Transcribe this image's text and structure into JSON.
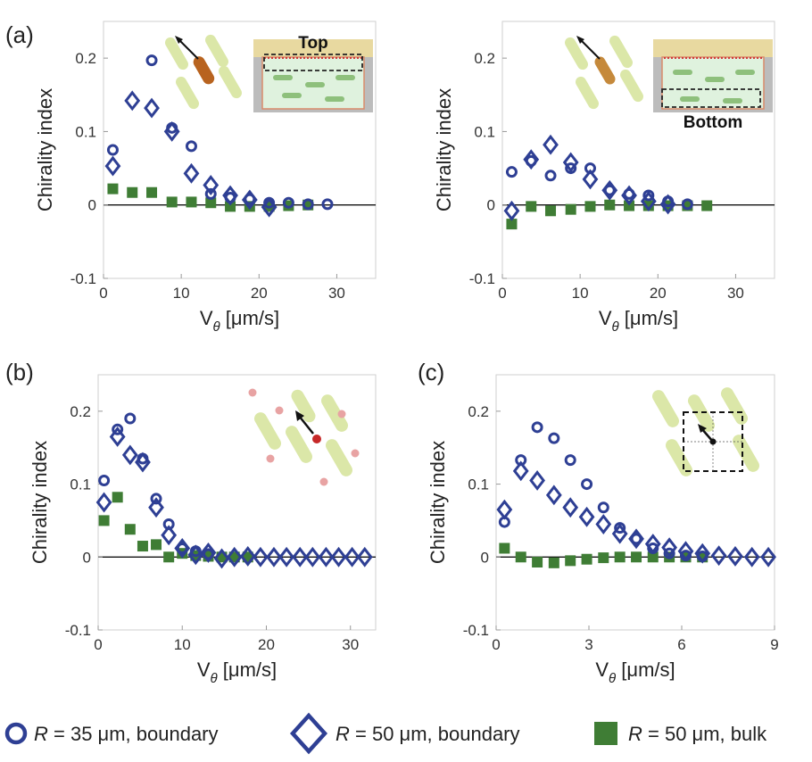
{
  "colors": {
    "circle": "#2e3f94",
    "diamond": "#2e3f94",
    "bulk": "#3f7d35"
  },
  "legend": {
    "circle_r": "R",
    "circle_rest": " = 35 μm, boundary",
    "diamond_r": "R",
    "diamond_rest": " = 50 μm, boundary",
    "bulk_r": "R",
    "bulk_rest": " = 50 μm, bulk"
  },
  "chart_data": [
    {
      "id": "a-top",
      "panel_label": "(a)",
      "type": "scatter",
      "inset_label": "Top",
      "xlabel_main": "V",
      "xlabel_sub": "θ",
      "xlabel_unit": " [μm/s]",
      "ylabel": "Chirality index",
      "xlim": [
        0,
        35
      ],
      "ylim": [
        -0.1,
        0.25
      ],
      "xticks": [
        0,
        10,
        20,
        30
      ],
      "xtick_labels": [
        "0",
        "10",
        "20",
        "30"
      ],
      "yticks": [
        -0.1,
        0,
        0.1,
        0.2
      ],
      "ytick_labels": [
        "-0.1",
        "0",
        "0.1",
        "0.2"
      ],
      "series": [
        {
          "name": "R = 35 μm, boundary",
          "marker": "circle",
          "x": [
            1.2,
            6.2,
            8.8,
            11.3,
            13.8,
            16.3,
            18.8,
            21.3,
            23.8,
            26.3,
            28.8
          ],
          "y": [
            0.075,
            0.197,
            0.105,
            0.08,
            0.015,
            0.01,
            0.008,
            0.003,
            0.003,
            0.001,
            0.001
          ]
        },
        {
          "name": "R = 50 μm, boundary",
          "marker": "diamond",
          "x": [
            1.2,
            3.7,
            6.2,
            8.8,
            11.3,
            13.8,
            16.3,
            18.8,
            21.3
          ],
          "y": [
            0.053,
            0.142,
            0.132,
            0.1,
            0.043,
            0.027,
            0.013,
            0.007,
            -0.003
          ]
        },
        {
          "name": "R = 50 μm, bulk",
          "marker": "square",
          "x": [
            1.2,
            3.7,
            6.2,
            8.8,
            11.3,
            13.8,
            16.3,
            18.8,
            21.3,
            23.8,
            26.3
          ],
          "y": [
            0.022,
            0.017,
            0.017,
            0.004,
            0.004,
            0.003,
            -0.002,
            -0.002,
            -0.002,
            -0.001,
            0.0
          ]
        }
      ]
    },
    {
      "id": "a-bottom",
      "panel_label": "",
      "type": "scatter",
      "inset_label": "Bottom",
      "xlabel_main": "V",
      "xlabel_sub": "θ",
      "xlabel_unit": " [μm/s]",
      "ylabel": "Chirality index",
      "xlim": [
        0,
        35
      ],
      "ylim": [
        -0.1,
        0.25
      ],
      "xticks": [
        0,
        10,
        20,
        30
      ],
      "xtick_labels": [
        "0",
        "10",
        "20",
        "30"
      ],
      "yticks": [
        -0.1,
        0,
        0.1,
        0.2
      ],
      "ytick_labels": [
        "-0.1",
        "0",
        "0.1",
        "0.2"
      ],
      "series": [
        {
          "name": "R = 35 μm, boundary",
          "marker": "circle",
          "x": [
            1.2,
            3.7,
            6.2,
            8.8,
            11.3,
            13.8,
            16.3,
            18.8,
            21.3,
            23.8
          ],
          "y": [
            0.045,
            0.06,
            0.04,
            0.05,
            0.05,
            0.02,
            0.015,
            0.013,
            0.005,
            0.001
          ]
        },
        {
          "name": "R = 50 μm, boundary",
          "marker": "diamond",
          "x": [
            1.2,
            3.7,
            6.2,
            8.8,
            11.3,
            13.8,
            16.3,
            18.8,
            21.3
          ],
          "y": [
            -0.008,
            0.062,
            0.082,
            0.058,
            0.035,
            0.02,
            0.013,
            0.005,
            0.001
          ]
        },
        {
          "name": "R = 50 μm, bulk",
          "marker": "square",
          "x": [
            1.2,
            3.7,
            6.2,
            8.8,
            11.3,
            13.8,
            16.3,
            18.8,
            21.3,
            23.8,
            26.3
          ],
          "y": [
            -0.026,
            -0.002,
            -0.008,
            -0.006,
            -0.002,
            0.0,
            -0.001,
            -0.001,
            -0.001,
            -0.001,
            -0.001
          ]
        }
      ]
    },
    {
      "id": "b",
      "panel_label": "(b)",
      "type": "scatter",
      "inset_label": "",
      "xlabel_main": "V",
      "xlabel_sub": "θ",
      "xlabel_unit": " [μm/s]",
      "ylabel": "Chirality index",
      "xlim": [
        0,
        33
      ],
      "ylim": [
        -0.1,
        0.25
      ],
      "xticks": [
        0,
        10,
        20,
        30
      ],
      "xtick_labels": [
        "0",
        "10",
        "20",
        "30"
      ],
      "yticks": [
        -0.1,
        0,
        0.1,
        0.2
      ],
      "ytick_labels": [
        "-0.1",
        "0",
        "0.1",
        "0.2"
      ],
      "series": [
        {
          "name": "R = 35 μm, boundary",
          "marker": "circle",
          "x": [
            0.7,
            2.3,
            3.8,
            5.3,
            6.9,
            8.4,
            10.0,
            11.6,
            13.1
          ],
          "y": [
            0.105,
            0.175,
            0.19,
            0.135,
            0.08,
            0.045,
            0.012,
            0.008,
            0.004
          ]
        },
        {
          "name": "R = 50 μm, boundary",
          "marker": "diamond",
          "x": [
            0.7,
            2.3,
            3.8,
            5.3,
            6.9,
            8.4,
            10.0,
            11.6,
            13.1,
            14.7,
            16.2,
            17.8,
            19.3,
            20.9,
            22.4,
            24.0,
            25.5,
            27.1,
            28.6,
            30.2,
            31.7
          ],
          "y": [
            0.075,
            0.165,
            0.14,
            0.13,
            0.068,
            0.03,
            0.012,
            0.003,
            0.006,
            -0.002,
            0.0,
            0.001,
            0.0,
            0.0,
            0.0,
            0.0,
            0.0,
            0.0,
            0.0,
            0.0,
            0.0
          ]
        },
        {
          "name": "R = 50 μm, bulk",
          "marker": "square",
          "x": [
            0.7,
            2.3,
            3.8,
            5.3,
            6.9,
            8.4,
            10.0,
            11.6,
            13.1,
            14.7,
            16.2,
            17.8
          ],
          "y": [
            0.05,
            0.082,
            0.038,
            0.015,
            0.017,
            0.0,
            0.005,
            0.002,
            0.001,
            0.0,
            0.0,
            0.0
          ]
        }
      ]
    },
    {
      "id": "c",
      "panel_label": "(c)",
      "type": "scatter",
      "inset_label": "",
      "xlabel_main": "V",
      "xlabel_sub": "θ",
      "xlabel_unit": " [μm/s]",
      "ylabel": "Chirality index",
      "xlim": [
        0,
        9
      ],
      "ylim": [
        -0.1,
        0.25
      ],
      "xticks": [
        0,
        3,
        6,
        9
      ],
      "xtick_labels": [
        "0",
        "3",
        "6",
        "9"
      ],
      "yticks": [
        -0.1,
        0,
        0.1,
        0.2
      ],
      "ytick_labels": [
        "-0.1",
        "0",
        "0.1",
        "0.2"
      ],
      "series": [
        {
          "name": "R = 35 μm, boundary",
          "marker": "circle",
          "x": [
            0.27,
            0.8,
            1.33,
            1.87,
            2.4,
            2.93,
            3.47,
            4.0,
            4.53,
            5.07,
            5.6,
            6.13,
            6.67
          ],
          "y": [
            0.048,
            0.133,
            0.178,
            0.163,
            0.133,
            0.1,
            0.068,
            0.04,
            0.025,
            0.012,
            0.005,
            0.002,
            0.001
          ]
        },
        {
          "name": "R = 50 μm, boundary",
          "marker": "diamond",
          "x": [
            0.27,
            0.8,
            1.33,
            1.87,
            2.4,
            2.93,
            3.47,
            4.0,
            4.53,
            5.07,
            5.6,
            6.13,
            6.67,
            7.2,
            7.73,
            8.27,
            8.8
          ],
          "y": [
            0.065,
            0.118,
            0.105,
            0.085,
            0.068,
            0.055,
            0.045,
            0.032,
            0.025,
            0.018,
            0.013,
            0.008,
            0.005,
            0.002,
            0.001,
            0.0,
            0.0
          ]
        },
        {
          "name": "R = 50 μm, bulk",
          "marker": "square",
          "x": [
            0.27,
            0.8,
            1.33,
            1.87,
            2.4,
            2.93,
            3.47,
            4.0,
            4.53,
            5.07,
            5.6,
            6.13,
            6.67
          ],
          "y": [
            0.012,
            0.0,
            -0.007,
            -0.008,
            -0.005,
            -0.003,
            -0.001,
            0.0,
            0.0,
            0.0,
            0.0,
            0.0,
            0.0
          ]
        }
      ]
    }
  ]
}
